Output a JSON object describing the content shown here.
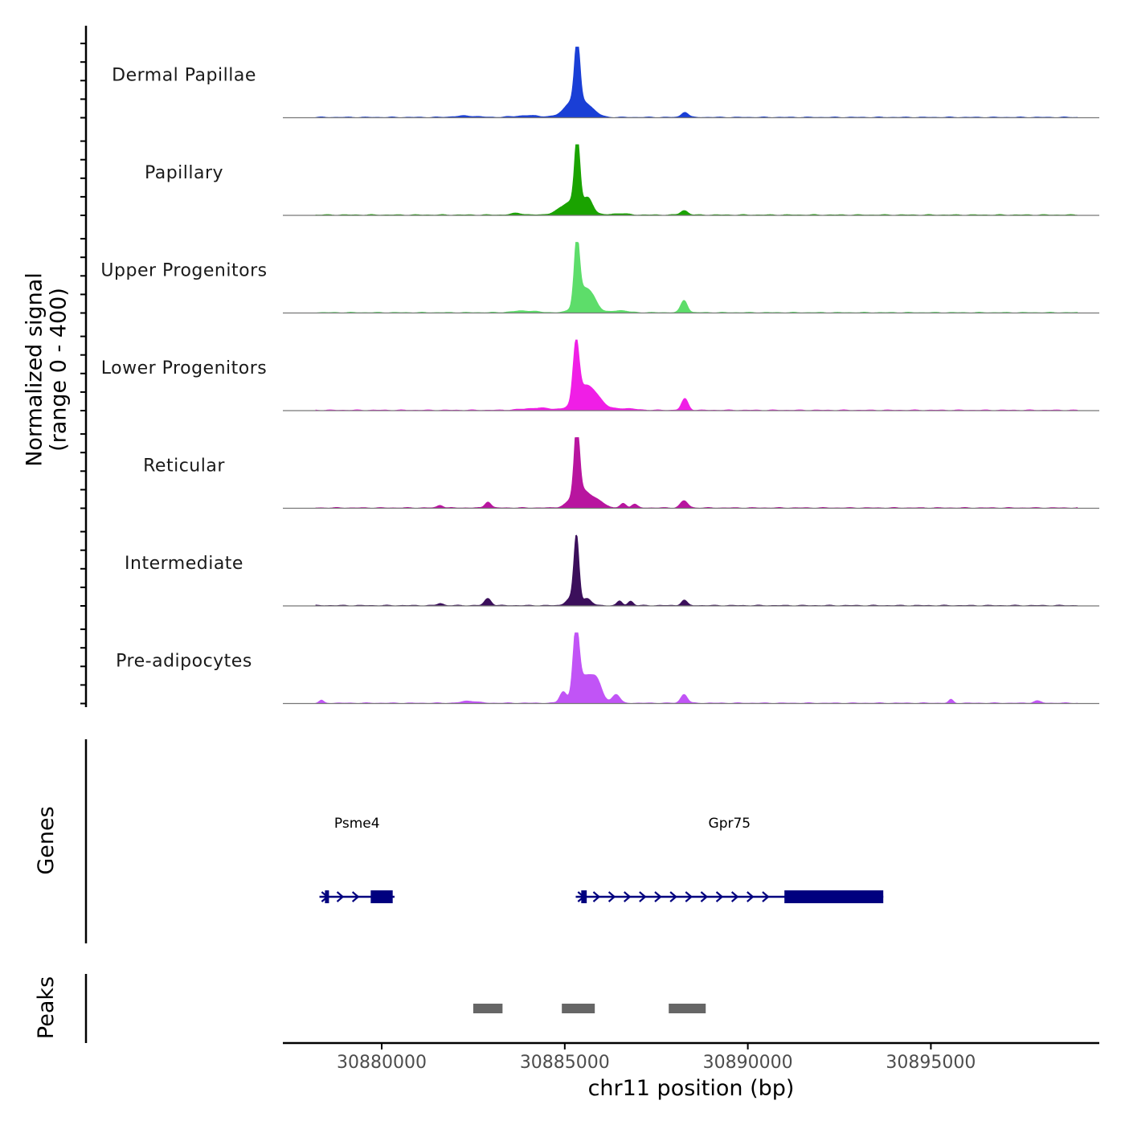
{
  "chart_data": {
    "type": "area",
    "title": "",
    "ylabel": "Normalized signal",
    "ylabel_range": "(range 0 - 400)",
    "ylim": [
      0,
      400
    ],
    "xlabel": "chr11 position (bp)",
    "xlim": [
      30877300,
      30899600
    ],
    "xticks": [
      30880000,
      30885000,
      30890000,
      30895000
    ],
    "xtick_labels": [
      "30880000",
      "30885000",
      "30890000",
      "30895000"
    ],
    "tracks": [
      {
        "name": "Dermal Papillae",
        "color": "#1a3fd6",
        "peaks": [
          [
            30885340,
            350,
            70
          ],
          [
            30885300,
            110,
            260
          ],
          [
            30885700,
            30,
            200
          ],
          [
            30888280,
            30,
            90
          ],
          [
            30882300,
            8,
            300
          ],
          [
            30884000,
            10,
            350
          ]
        ]
      },
      {
        "name": "Papillary",
        "color": "#1aa300",
        "peaks": [
          [
            30885340,
            390,
            70
          ],
          [
            30885220,
            80,
            300
          ],
          [
            30885650,
            70,
            120
          ],
          [
            30888260,
            25,
            100
          ],
          [
            30883700,
            10,
            150
          ],
          [
            30886500,
            8,
            200
          ]
        ]
      },
      {
        "name": "Upper Progenitors",
        "color": "#5ddd6a",
        "peaks": [
          [
            30885330,
            360,
            70
          ],
          [
            30885500,
            130,
            200
          ],
          [
            30885780,
            50,
            150
          ],
          [
            30888260,
            70,
            90
          ],
          [
            30886500,
            12,
            200
          ],
          [
            30883900,
            10,
            300
          ]
        ]
      },
      {
        "name": "Lower Progenitors",
        "color": "#f01ee6",
        "peaks": [
          [
            30885310,
            330,
            80
          ],
          [
            30885550,
            130,
            250
          ],
          [
            30885900,
            40,
            200
          ],
          [
            30888280,
            65,
            90
          ],
          [
            30884300,
            12,
            400
          ],
          [
            30886600,
            10,
            300
          ]
        ]
      },
      {
        "name": "Reticular",
        "color": "#b8159f",
        "peaks": [
          [
            30885330,
            400,
            70
          ],
          [
            30885450,
            110,
            250
          ],
          [
            30885950,
            30,
            150
          ],
          [
            30888260,
            40,
            100
          ],
          [
            30882900,
            35,
            80
          ],
          [
            30881600,
            15,
            80
          ],
          [
            30886600,
            25,
            80
          ],
          [
            30886900,
            20,
            80
          ]
        ]
      },
      {
        "name": "Intermediate",
        "color": "#3b0f5b",
        "peaks": [
          [
            30885320,
            390,
            70
          ],
          [
            30885150,
            40,
            120
          ],
          [
            30885600,
            40,
            120
          ],
          [
            30888260,
            30,
            80
          ],
          [
            30882900,
            40,
            90
          ],
          [
            30886500,
            25,
            70
          ],
          [
            30886800,
            25,
            70
          ],
          [
            30881600,
            12,
            80
          ]
        ]
      },
      {
        "name": "Pre-adipocytes",
        "color": "#c154f6",
        "peaks": [
          [
            30885310,
            380,
            80
          ],
          [
            30885600,
            160,
            250
          ],
          [
            30884950,
            60,
            90
          ],
          [
            30885900,
            60,
            120
          ],
          [
            30886400,
            50,
            100
          ],
          [
            30888260,
            50,
            90
          ],
          [
            30878350,
            15,
            60
          ],
          [
            30882400,
            12,
            200
          ],
          [
            30895550,
            20,
            60
          ],
          [
            30897900,
            12,
            100
          ]
        ]
      }
    ],
    "genes_track_label": "Genes",
    "genes": [
      {
        "name": "Psme4",
        "start": 30878300,
        "end": 30880350,
        "cds_start": 30879700,
        "cds_end": 30880300,
        "first_exon": [
          30878450,
          30878560
        ],
        "strand": "+"
      },
      {
        "name": "Gpr75",
        "start": 30885300,
        "end": 30893700,
        "cds_start": 30891000,
        "cds_end": 30893700,
        "first_exon": [
          30885450,
          30885600
        ],
        "strand": "+"
      }
    ],
    "peaks_track_label": "Peaks",
    "peak_regions": [
      [
        30882500,
        30883300
      ],
      [
        30884920,
        30885820
      ],
      [
        30887840,
        30888850
      ]
    ]
  }
}
